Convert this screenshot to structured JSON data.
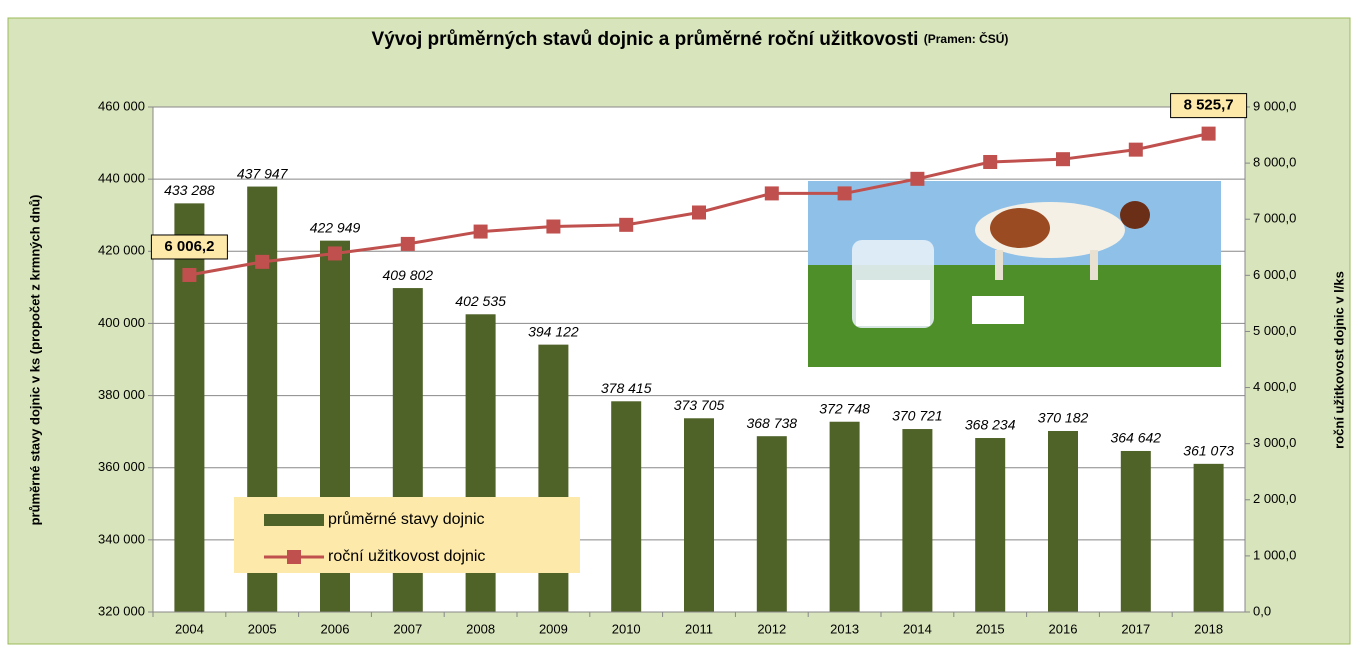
{
  "chart_data": {
    "type": "bar_line",
    "title": "Vývoj průměrných stavů dojnic a průměrné roční užitkovosti",
    "source": "(Pramen: ČSÚ)",
    "y_label": "průměrné stavy dojnic v ks (propočet z krmných dnů)",
    "y2_label": "roční užitkovost dojnic v l/ks",
    "categories": [
      "2004",
      "2005",
      "2006",
      "2007",
      "2008",
      "2009",
      "2010",
      "2011",
      "2012",
      "2013",
      "2014",
      "2015",
      "2016",
      "2017",
      "2018"
    ],
    "series": [
      {
        "name": "průměrné stavy dojnic",
        "type": "bar",
        "color": "#4f6228",
        "values": [
          433288,
          437947,
          422949,
          409802,
          402535,
          394122,
          378415,
          373705,
          368738,
          372748,
          370721,
          368234,
          370182,
          364642,
          361073
        ],
        "value_labels": [
          "433 288",
          "437 947",
          "422 949",
          "409 802",
          "402 535",
          "394 122",
          "378 415",
          "373 705",
          "368 738",
          "372 748",
          "370 721",
          "368 234",
          "370 182",
          "364 642",
          "361 073"
        ]
      },
      {
        "name": "roční užitkovost dojnic",
        "type": "line",
        "axis": "y2",
        "color": "#c0504d",
        "values": [
          6006.2,
          6240,
          6390,
          6560,
          6780,
          6870,
          6900,
          7120,
          7460,
          7460,
          7720,
          8020,
          8070,
          8240,
          8525.7
        ],
        "value_labels": [
          "6 006,2",
          null,
          null,
          null,
          null,
          null,
          null,
          null,
          null,
          null,
          null,
          null,
          null,
          null,
          "8 525,7"
        ]
      }
    ],
    "ylim": [
      320000,
      460000
    ],
    "yticks": [
      {
        "value": 320000,
        "label": "320 000"
      },
      {
        "value": 340000,
        "label": "340 000"
      },
      {
        "value": 360000,
        "label": "360 000"
      },
      {
        "value": 380000,
        "label": "380 000"
      },
      {
        "value": 400000,
        "label": "400 000"
      },
      {
        "value": 420000,
        "label": "420 000"
      },
      {
        "value": 440000,
        "label": "440 000"
      },
      {
        "value": 460000,
        "label": "460 000"
      }
    ],
    "y2lim": [
      0,
      9000
    ],
    "y2ticks": [
      {
        "value": 0,
        "label": "0,0"
      },
      {
        "value": 1000,
        "label": "1 000,0"
      },
      {
        "value": 2000,
        "label": "2 000,0"
      },
      {
        "value": 3000,
        "label": "3 000,0"
      },
      {
        "value": 4000,
        "label": "4 000,0"
      },
      {
        "value": 5000,
        "label": "5 000,0"
      },
      {
        "value": 6000,
        "label": "6 000,0"
      },
      {
        "value": 7000,
        "label": "7 000,0"
      },
      {
        "value": 8000,
        "label": "8 000,0"
      },
      {
        "value": 9000,
        "label": "9 000,0"
      }
    ],
    "grid": true
  }
}
